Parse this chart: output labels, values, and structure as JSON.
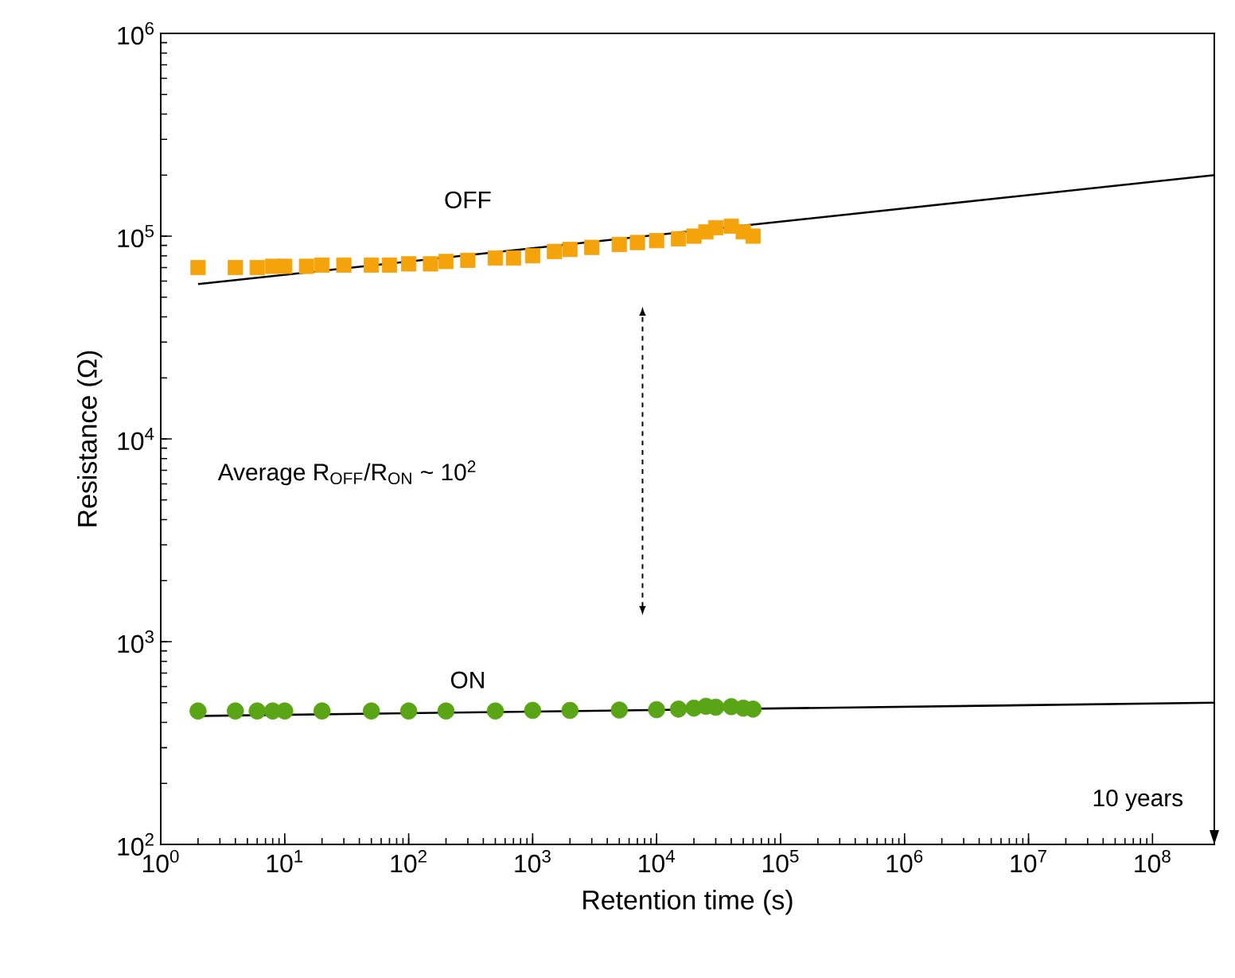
{
  "chart_data": {
    "type": "scatter",
    "xlabel": "Retention time (s)",
    "ylabel": "Resistance (Ω)",
    "log": "xy",
    "xlim": [
      1,
      315360000
    ],
    "ylim": [
      100,
      1000000
    ],
    "xticks": [
      {
        "value": 1,
        "label": "10$^{0}$"
      },
      {
        "value": 10,
        "label": "10$^{1}$"
      },
      {
        "value": 100,
        "label": "10$^{2}$"
      },
      {
        "value": 1000,
        "label": "10$^{3}$"
      },
      {
        "value": 10000,
        "label": "10$^{4}$"
      },
      {
        "value": 100000,
        "label": "10$^{5}$"
      },
      {
        "value": 1000000,
        "label": "10$^{6}$"
      },
      {
        "value": 10000000,
        "label": "10$^{7}$"
      },
      {
        "value": 100000000,
        "label": "10$^{8}$"
      }
    ],
    "yticks": [
      {
        "value": 100,
        "label": "10$^{2}$"
      },
      {
        "value": 1000,
        "label": "10$^{3}$"
      },
      {
        "value": 10000,
        "label": "10$^{4}$"
      },
      {
        "value": 100000,
        "label": "10$^{5}$"
      },
      {
        "value": 1000000,
        "label": "10$^{6}$"
      }
    ],
    "grid": false,
    "series": [
      {
        "name": "OFF",
        "color": "#f5a30a",
        "marker": "square",
        "x": [
          2,
          4,
          6,
          8,
          10,
          15,
          20,
          30,
          50,
          70,
          100,
          150,
          200,
          300,
          500,
          700,
          1000,
          1500,
          2000,
          3000,
          5000,
          7000,
          10000,
          15000,
          20000,
          25000,
          30000,
          40000,
          50000,
          60000
        ],
        "values": [
          70000,
          70000,
          70000,
          71000,
          71000,
          71000,
          72000,
          72000,
          72000,
          72000,
          73000,
          73000,
          75000,
          76000,
          78000,
          78000,
          80000,
          84000,
          86000,
          88000,
          91000,
          93000,
          95000,
          97000,
          100000,
          105000,
          110000,
          112000,
          105000,
          100000
        ]
      },
      {
        "name": "ON",
        "color": "#5aa516",
        "marker": "circle",
        "x": [
          2,
          4,
          6,
          8,
          10,
          20,
          50,
          100,
          200,
          500,
          1000,
          2000,
          5000,
          10000,
          15000,
          20000,
          25000,
          30000,
          40000,
          50000,
          60000
        ],
        "values": [
          455,
          455,
          455,
          455,
          455,
          455,
          455,
          455,
          455,
          455,
          458,
          458,
          460,
          462,
          465,
          470,
          480,
          475,
          478,
          470,
          465
        ]
      },
      {
        "type": "line",
        "color": "#000000",
        "line_style": "solid",
        "marker": "none",
        "x": [
          2,
          315360000
        ],
        "values": [
          58000,
          200000
        ]
      },
      {
        "type": "line",
        "color": "#000000",
        "line_style": "solid",
        "marker": "none",
        "x": [
          2,
          315360000
        ],
        "values": [
          430,
          500
        ]
      }
    ],
    "annotations": [
      "Average R$_{OFF}$/R$_{ON}$ ~ 10$^{2}$",
      "10 years"
    ]
  }
}
